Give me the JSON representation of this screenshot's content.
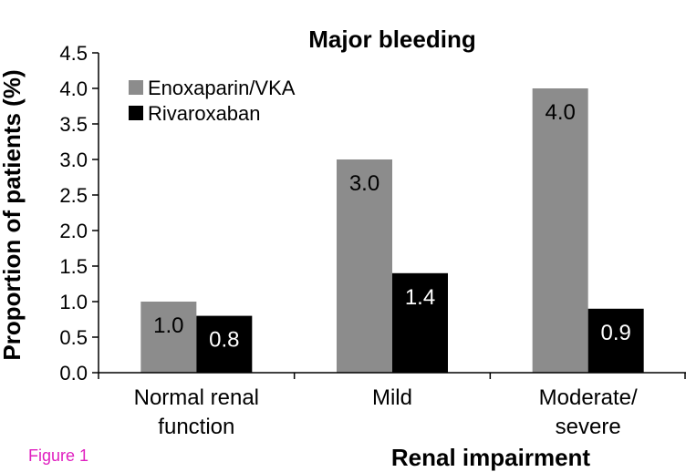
{
  "figure_label": "Figure 1",
  "colors": {
    "enoxaparin": "#8c8c8c",
    "rivaroxaban": "#000000",
    "figure_label": "#e020c0"
  },
  "chart_data": {
    "type": "bar",
    "title": "Major bleeding",
    "xlabel": "Renal impairment",
    "ylabel": "Proportion of patients (%)",
    "ylim": [
      0,
      4.5
    ],
    "yticks": [
      "0.0",
      "0.5",
      "1.0",
      "1.5",
      "2.0",
      "2.5",
      "3.0",
      "3.5",
      "4.0",
      "4.5"
    ],
    "categories": [
      [
        "Normal renal",
        "function"
      ],
      [
        "Mild"
      ],
      [
        "Moderate/",
        "severe"
      ]
    ],
    "series": [
      {
        "name": "Enoxaparin/VKA",
        "values": [
          1.0,
          3.0,
          4.0
        ],
        "labels": [
          "1.0",
          "3.0",
          "4.0"
        ]
      },
      {
        "name": "Rivaroxaban",
        "values": [
          0.8,
          1.4,
          0.9
        ],
        "labels": [
          "0.8",
          "1.4",
          "0.9"
        ]
      }
    ],
    "legend": "top-left",
    "grid": false
  }
}
